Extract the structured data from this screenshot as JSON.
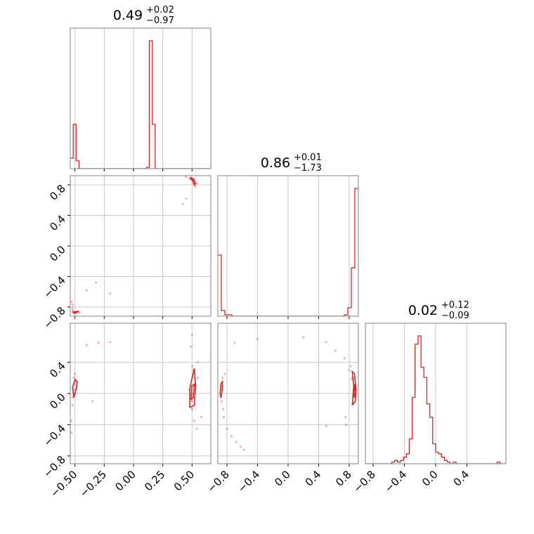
{
  "chart_data": {
    "type": "corner",
    "color": "#d62728",
    "grid": true,
    "parameters": [
      {
        "range": [
          -0.54,
          0.66
        ],
        "ticks": [
          -0.5,
          -0.25,
          0.0,
          0.25,
          0.5
        ],
        "tick_labels": [
          "−0.50",
          "−0.25",
          "0.00",
          "0.25",
          "0.50"
        ],
        "title_value": "0.49",
        "title_plus": "+0.02",
        "title_minus": "−0.97",
        "hist": {
          "edges_start": -0.54,
          "bin_width": 0.025,
          "counts": [
            0.08,
            0.34,
            0.06,
            0,
            0,
            0,
            0,
            0,
            0,
            0,
            0,
            0,
            0,
            0,
            0,
            0,
            0,
            0,
            0,
            0,
            0,
            0,
            0,
            0,
            0,
            0,
            0.01,
            0.98,
            0.34,
            0,
            0,
            0,
            0,
            0,
            0,
            0,
            0,
            0,
            0,
            0,
            0,
            0,
            0,
            0,
            0,
            0,
            0,
            0
          ]
        }
      },
      {
        "range": [
          -0.92,
          0.92
        ],
        "ticks": [
          -0.8,
          -0.4,
          0.0,
          0.4,
          0.8
        ],
        "tick_labels": [
          "−0.8",
          "−0.4",
          "0.0",
          "0.4",
          "0.8"
        ],
        "title_value": "0.86",
        "title_plus": "+0.01",
        "title_minus": "−1.73",
        "hist": {
          "edges_start": -0.92,
          "bin_width": 0.046,
          "counts": [
            0.43,
            0.04,
            0.01,
            0.01,
            0,
            0,
            0,
            0,
            0,
            0,
            0,
            0,
            0,
            0,
            0,
            0,
            0,
            0,
            0,
            0,
            0,
            0,
            0,
            0,
            0,
            0,
            0,
            0,
            0,
            0,
            0,
            0,
            0,
            0,
            0,
            0,
            0.01,
            0.06,
            0.34,
            0.9
          ]
        }
      },
      {
        "range": [
          -0.9,
          0.9
        ],
        "ticks": [
          -0.8,
          -0.4,
          0.0,
          0.4
        ],
        "tick_labels": [
          "−0.8",
          "−0.4",
          "0.0",
          "0.4"
        ],
        "title_value": "0.02",
        "title_plus": "+0.12",
        "title_minus": "−0.09",
        "hist": {
          "edges_start": -0.9,
          "bin_width": 0.0375,
          "counts": [
            0,
            0,
            0,
            0,
            0,
            0,
            0,
            0,
            0,
            0.01,
            0.02,
            0.01,
            0.02,
            0.04,
            0.06,
            0.15,
            0.4,
            0.72,
            0.77,
            0.58,
            0.52,
            0.36,
            0.28,
            0.12,
            0.07,
            0.06,
            0.04,
            0.02,
            0.01,
            0,
            0.01,
            0,
            0,
            0,
            0,
            0,
            0,
            0,
            0,
            0,
            0,
            0,
            0,
            0,
            0,
            0.01,
            0,
            0
          ]
        }
      }
    ],
    "pairs": [
      {
        "x_param": 0,
        "y_param": 1,
        "samples": [
          [
            -0.52,
            -0.86
          ],
          [
            -0.51,
            -0.87
          ],
          [
            -0.5,
            -0.87
          ],
          [
            -0.49,
            -0.87
          ],
          [
            -0.47,
            -0.86
          ],
          [
            -0.46,
            -0.87
          ],
          [
            -0.52,
            -0.84
          ],
          [
            -0.52,
            -0.81
          ],
          [
            -0.52,
            -0.77
          ],
          [
            -0.53,
            -0.73
          ],
          [
            -0.5,
            -0.88
          ],
          [
            -0.48,
            -0.86
          ],
          [
            -0.4,
            -0.58
          ],
          [
            -0.32,
            -0.48
          ],
          [
            -0.2,
            -0.62
          ],
          [
            0.45,
            0.9
          ],
          [
            0.48,
            0.88
          ],
          [
            0.5,
            0.86
          ],
          [
            0.51,
            0.84
          ],
          [
            0.51,
            0.82
          ],
          [
            0.52,
            0.8
          ],
          [
            0.5,
            0.88
          ],
          [
            0.49,
            0.9
          ],
          [
            0.53,
            0.78
          ],
          [
            0.45,
            0.62
          ],
          [
            0.42,
            0.55
          ],
          [
            0.52,
            0.88
          ],
          [
            0.54,
            0.82
          ]
        ],
        "contours": [
          [
            [
              -0.52,
              -0.87
            ],
            [
              -0.5,
              -0.86
            ],
            [
              -0.47,
              -0.86
            ],
            [
              -0.5,
              -0.88
            ],
            [
              -0.52,
              -0.87
            ]
          ],
          [
            [
              0.48,
              0.89
            ],
            [
              0.51,
              0.85
            ],
            [
              0.52,
              0.8
            ],
            [
              0.53,
              0.82
            ],
            [
              0.51,
              0.88
            ],
            [
              0.48,
              0.89
            ]
          ]
        ]
      },
      {
        "x_param": 0,
        "y_param": 2,
        "samples": [
          [
            -0.51,
            0.05
          ],
          [
            -0.5,
            0.12
          ],
          [
            -0.5,
            0.0
          ],
          [
            -0.52,
            -0.05
          ],
          [
            -0.49,
            0.15
          ],
          [
            -0.51,
            0.2
          ],
          [
            -0.52,
            -0.15
          ],
          [
            -0.53,
            -0.35
          ],
          [
            -0.53,
            -0.5
          ],
          [
            -0.5,
            0.25
          ],
          [
            -0.48,
            0.08
          ],
          [
            -0.4,
            0.62
          ],
          [
            -0.3,
            0.65
          ],
          [
            -0.2,
            0.66
          ],
          [
            -0.35,
            -0.1
          ],
          [
            0.5,
            0.0
          ],
          [
            0.5,
            -0.1
          ],
          [
            0.5,
            0.1
          ],
          [
            0.51,
            0.2
          ],
          [
            0.51,
            0.3
          ],
          [
            0.5,
            -0.2
          ],
          [
            0.52,
            -0.05
          ],
          [
            0.48,
            0.05
          ],
          [
            0.5,
            0.35
          ],
          [
            0.49,
            0.6
          ],
          [
            0.5,
            0.75
          ],
          [
            0.52,
            -0.35
          ],
          [
            0.54,
            -0.45
          ],
          [
            0.58,
            -0.3
          ],
          [
            0.55,
            0.2
          ],
          [
            0.55,
            0.4
          ]
        ],
        "contours": [
          [
            [
              -0.51,
              -0.05
            ],
            [
              -0.49,
              0.05
            ],
            [
              -0.48,
              0.15
            ],
            [
              -0.5,
              0.18
            ],
            [
              -0.52,
              0.08
            ],
            [
              -0.51,
              -0.05
            ]
          ],
          [
            [
              0.48,
              -0.18
            ],
            [
              0.52,
              -0.15
            ],
            [
              0.53,
              0.1
            ],
            [
              0.52,
              0.32
            ],
            [
              0.5,
              0.2
            ],
            [
              0.48,
              0.05
            ],
            [
              0.48,
              -0.18
            ]
          ],
          [
            [
              0.49,
              -0.08
            ],
            [
              0.51,
              -0.05
            ],
            [
              0.52,
              0.12
            ],
            [
              0.5,
              0.1
            ],
            [
              0.49,
              -0.08
            ]
          ]
        ]
      },
      {
        "x_param": 1,
        "y_param": 2,
        "samples": [
          [
            -0.88,
            0.05
          ],
          [
            -0.87,
            0.1
          ],
          [
            -0.88,
            -0.05
          ],
          [
            -0.86,
            0.15
          ],
          [
            -0.87,
            -0.1
          ],
          [
            -0.86,
            0.2
          ],
          [
            -0.85,
            -0.2
          ],
          [
            -0.84,
            -0.3
          ],
          [
            -0.8,
            -0.45
          ],
          [
            -0.74,
            -0.55
          ],
          [
            -0.68,
            -0.62
          ],
          [
            -0.62,
            -0.68
          ],
          [
            -0.58,
            -0.72
          ],
          [
            -0.83,
            0.25
          ],
          [
            -0.7,
            0.65
          ],
          [
            -0.4,
            0.7
          ],
          [
            0.2,
            0.72
          ],
          [
            0.5,
            0.66
          ],
          [
            0.62,
            0.55
          ],
          [
            0.74,
            0.45
          ],
          [
            0.8,
            0.3
          ],
          [
            0.84,
            0.18
          ],
          [
            0.86,
            0.05
          ],
          [
            0.87,
            -0.05
          ],
          [
            0.86,
            -0.12
          ],
          [
            0.84,
            0.2
          ],
          [
            0.88,
            0.1
          ],
          [
            0.82,
            0.35
          ],
          [
            0.75,
            -0.3
          ],
          [
            0.76,
            -0.4
          ],
          [
            0.5,
            -0.42
          ]
        ],
        "contours": [
          [
            [
              -0.88,
              -0.05
            ],
            [
              -0.86,
              0.05
            ],
            [
              -0.86,
              0.15
            ],
            [
              -0.88,
              0.12
            ],
            [
              -0.89,
              0.0
            ],
            [
              -0.88,
              -0.05
            ]
          ],
          [
            [
              0.84,
              -0.15
            ],
            [
              0.88,
              -0.1
            ],
            [
              0.89,
              0.05
            ],
            [
              0.87,
              0.25
            ],
            [
              0.84,
              0.28
            ],
            [
              0.86,
              0.1
            ],
            [
              0.84,
              -0.15
            ]
          ],
          [
            [
              0.86,
              -0.05
            ],
            [
              0.88,
              0.0
            ],
            [
              0.87,
              0.12
            ],
            [
              0.86,
              0.05
            ],
            [
              0.86,
              -0.05
            ]
          ]
        ]
      }
    ]
  }
}
